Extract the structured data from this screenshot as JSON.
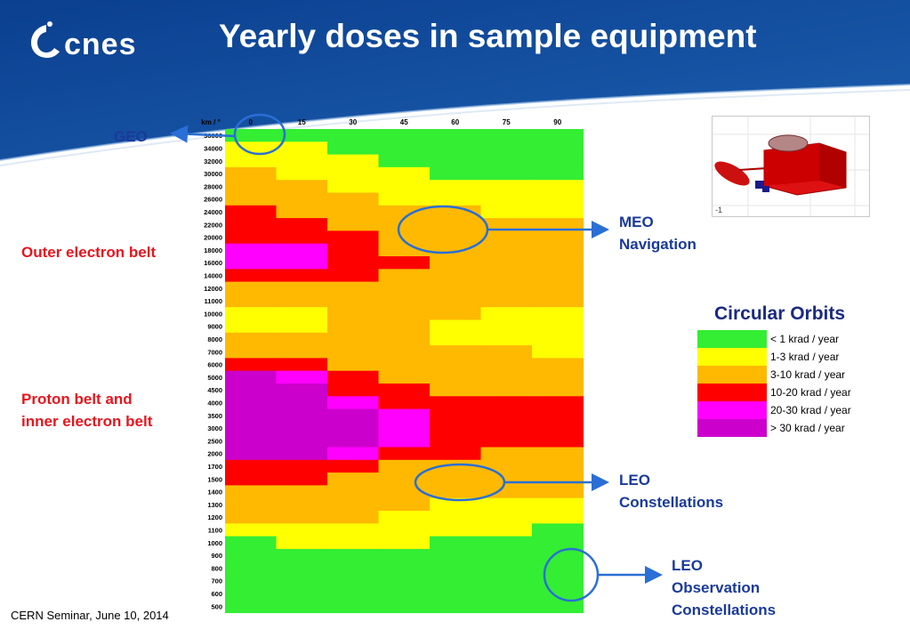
{
  "header": {
    "logo_text": "cnes",
    "title": "Yearly doses in sample equipment"
  },
  "annotations": {
    "geo": "GEO",
    "outer_belt": "Outer electron belt",
    "proton_belt_line1": "Proton belt and",
    "proton_belt_line2": "inner electron belt",
    "meo_line1": "MEO",
    "meo_line2": "Navigation",
    "leo_const_line1": "LEO",
    "leo_const_line2": "Constellations",
    "leo_obs_line1": "LEO",
    "leo_obs_line2": "Observation",
    "leo_obs_line3": "Constellations"
  },
  "legend": {
    "title": "Circular Orbits",
    "items": [
      {
        "label": "< 1 krad / year",
        "color": "#33ee33"
      },
      {
        "label": "1-3 krad / year",
        "color": "#ffff00"
      },
      {
        "label": "3-10 krad / year",
        "color": "#ffb900"
      },
      {
        "label": "10-20 krad / year",
        "color": "#ff0000"
      },
      {
        "label": "20-30 krad / year",
        "color": "#ff00ff"
      },
      {
        "label": "> 30 krad / year",
        "color": "#cc00cc"
      }
    ]
  },
  "footer": {
    "text": "CERN Seminar, June 10, 2014"
  },
  "satellite_image": {
    "axis_label": "-1"
  },
  "chart_data": {
    "type": "heatmap",
    "corner_label": "km / °",
    "x": [
      "0",
      "15",
      "30",
      "45",
      "60",
      "75",
      "90"
    ],
    "y": [
      "36000",
      "34000",
      "32000",
      "30000",
      "28000",
      "26000",
      "24000",
      "22000",
      "20000",
      "18000",
      "16000",
      "14000",
      "12000",
      "11000",
      "10000",
      "9000",
      "8000",
      "7000",
      "6000",
      "5000",
      "4500",
      "4000",
      "3500",
      "3000",
      "2500",
      "2000",
      "1700",
      "1500",
      "1400",
      "1300",
      "1200",
      "1100",
      "1000",
      "900",
      "800",
      "700",
      "600",
      "500"
    ],
    "colors": [
      "#33ee33",
      "#ffff00",
      "#ffb900",
      "#ff0000",
      "#ff00ff",
      "#cc00cc"
    ],
    "dose_classes": [
      "< 1 krad / year",
      "1-3 krad / year",
      "3-10 krad / year",
      "10-20 krad / year",
      "20-30 krad / year",
      "> 30 krad / year"
    ],
    "values": [
      [
        0,
        0,
        0,
        0,
        0,
        0,
        0
      ],
      [
        1,
        1,
        0,
        0,
        0,
        0,
        0
      ],
      [
        1,
        1,
        1,
        0,
        0,
        0,
        0
      ],
      [
        2,
        1,
        1,
        1,
        0,
        0,
        0
      ],
      [
        2,
        2,
        1,
        1,
        1,
        1,
        1
      ],
      [
        2,
        2,
        2,
        1,
        1,
        1,
        1
      ],
      [
        3,
        2,
        2,
        2,
        2,
        1,
        1
      ],
      [
        3,
        3,
        2,
        2,
        2,
        2,
        2
      ],
      [
        3,
        3,
        3,
        2,
        2,
        2,
        2
      ],
      [
        4,
        4,
        3,
        2,
        2,
        2,
        2
      ],
      [
        4,
        4,
        3,
        3,
        2,
        2,
        2
      ],
      [
        3,
        3,
        3,
        2,
        2,
        2,
        2
      ],
      [
        2,
        2,
        2,
        2,
        2,
        2,
        2
      ],
      [
        2,
        2,
        2,
        2,
        2,
        2,
        2
      ],
      [
        1,
        1,
        2,
        2,
        2,
        1,
        1
      ],
      [
        1,
        1,
        2,
        2,
        1,
        1,
        1
      ],
      [
        2,
        2,
        2,
        2,
        1,
        1,
        1
      ],
      [
        2,
        2,
        2,
        2,
        2,
        2,
        1
      ],
      [
        3,
        3,
        2,
        2,
        2,
        2,
        2
      ],
      [
        5,
        4,
        3,
        2,
        2,
        2,
        2
      ],
      [
        5,
        5,
        3,
        3,
        2,
        2,
        2
      ],
      [
        5,
        5,
        4,
        3,
        3,
        3,
        3
      ],
      [
        5,
        5,
        5,
        4,
        3,
        3,
        3
      ],
      [
        5,
        5,
        5,
        4,
        3,
        3,
        3
      ],
      [
        5,
        5,
        5,
        4,
        3,
        3,
        3
      ],
      [
        5,
        5,
        4,
        3,
        3,
        2,
        2
      ],
      [
        3,
        3,
        3,
        2,
        2,
        2,
        2
      ],
      [
        3,
        3,
        2,
        2,
        2,
        2,
        2
      ],
      [
        2,
        2,
        2,
        2,
        2,
        2,
        2
      ],
      [
        2,
        2,
        2,
        2,
        1,
        1,
        1
      ],
      [
        2,
        2,
        2,
        1,
        1,
        1,
        1
      ],
      [
        1,
        1,
        1,
        1,
        1,
        1,
        0
      ],
      [
        0,
        1,
        1,
        1,
        0,
        0,
        0
      ],
      [
        0,
        0,
        0,
        0,
        0,
        0,
        0
      ],
      [
        0,
        0,
        0,
        0,
        0,
        0,
        0
      ],
      [
        0,
        0,
        0,
        0,
        0,
        0,
        0
      ],
      [
        0,
        0,
        0,
        0,
        0,
        0,
        0
      ],
      [
        0,
        0,
        0,
        0,
        0,
        0,
        0
      ]
    ]
  }
}
